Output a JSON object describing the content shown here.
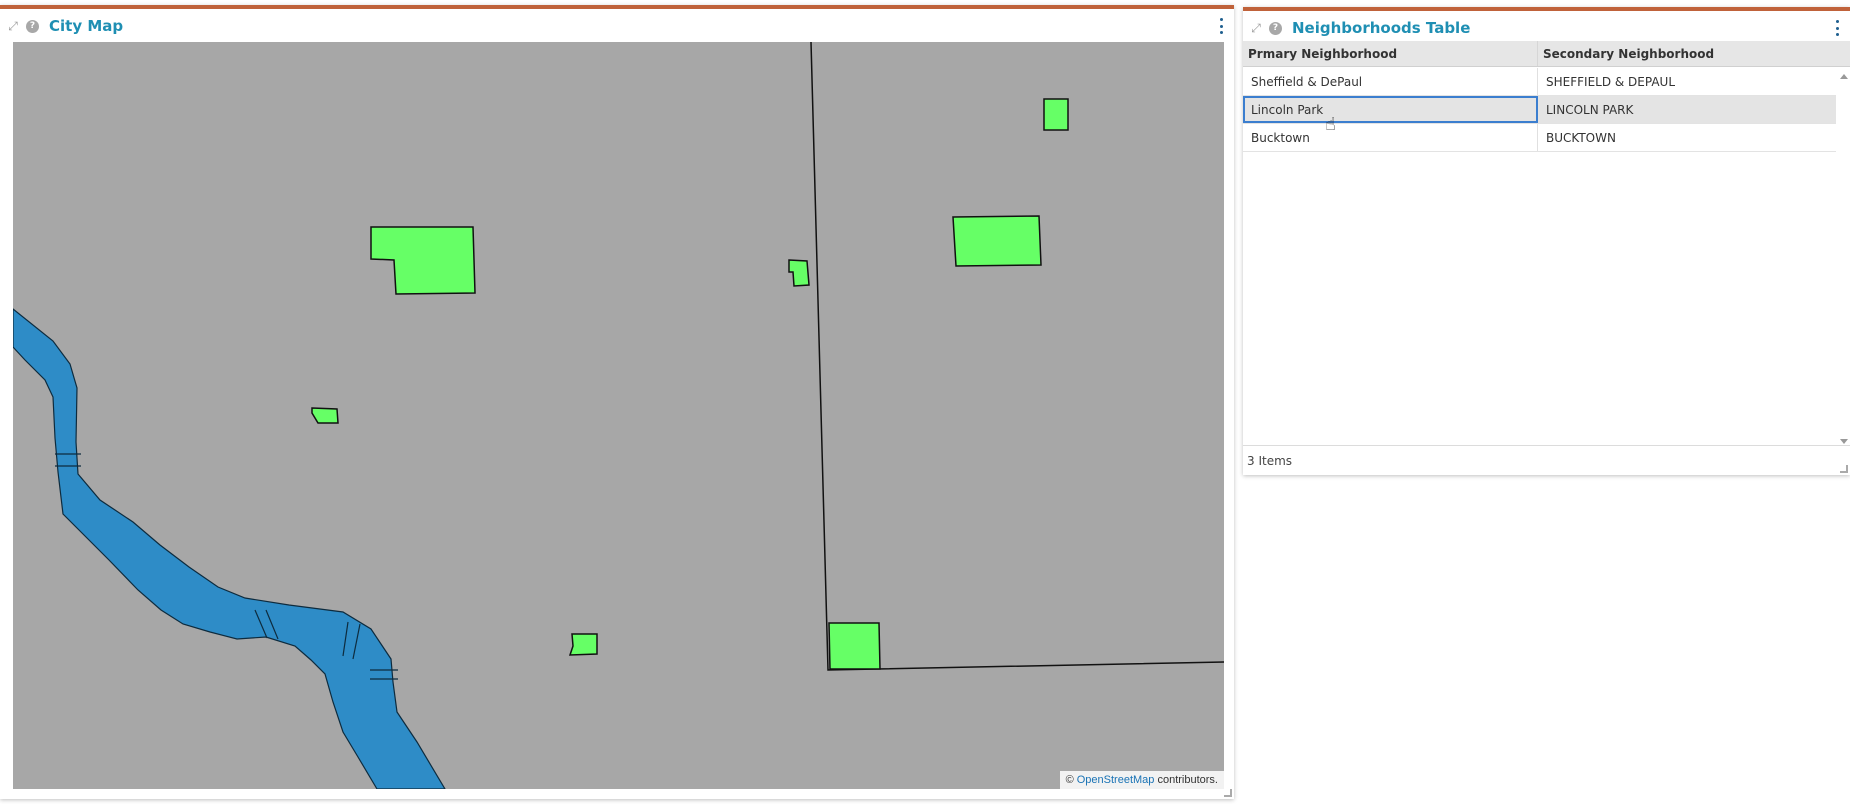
{
  "map_panel": {
    "title": "City Map",
    "attribution_prefix": "© ",
    "attribution_link": "OpenStreetMap",
    "attribution_suffix": " contributors."
  },
  "table_panel": {
    "title": "Neighborhoods Table",
    "columns": [
      "Prmary Neighborhood",
      "Secondary Neighborhood"
    ],
    "rows": [
      {
        "primary": "Sheffield & DePaul",
        "secondary": "SHEFFIELD & DEPAUL"
      },
      {
        "primary": "Lincoln Park",
        "secondary": "LINCOLN PARK"
      },
      {
        "primary": "Bucktown",
        "secondary": "BUCKTOWN"
      }
    ],
    "footer": "3 Items"
  },
  "colors": {
    "accent": "#c0623a",
    "title": "#1f8fb3",
    "map_background": "#a7a7a7",
    "polygon_fill": "#66ff66",
    "river_fill": "#2e8cc7"
  },
  "icons": {
    "expand": "expand-icon",
    "help": "help-icon",
    "menu": "kebab-menu-icon"
  }
}
